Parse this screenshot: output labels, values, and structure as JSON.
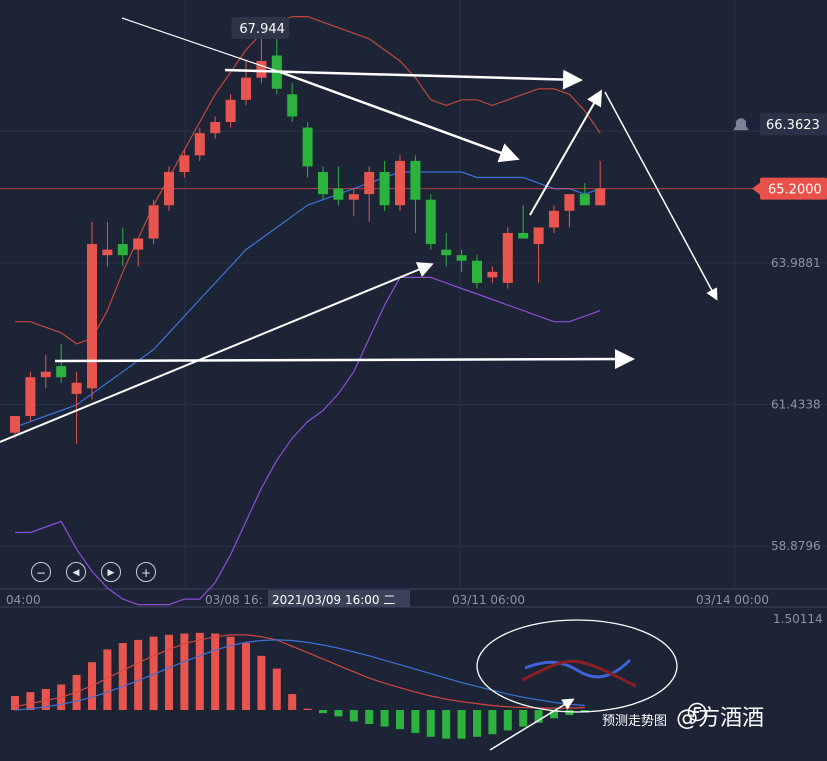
{
  "chart_data": {
    "type": "candlestick",
    "main": {
      "y_ticks": [
        "66.3623",
        "63.9881",
        "61.4338",
        "58.8796"
      ],
      "y_tick_values": [
        66.3623,
        63.9881,
        61.4338,
        58.8796
      ],
      "top_tick_partial": "",
      "ylim": [
        58.0,
        68.6
      ],
      "last_price_label": "65.2000",
      "last_price": 65.2,
      "high_label": "67.944",
      "x_labels": [
        "04:00",
        "03/08 16:",
        "03/11 06:00",
        "03/14 00:00"
      ],
      "crosshair_time": "2021/03/09 16:00 二",
      "candles": [
        [
          60.8,
          61.1,
          60.7,
          61.1
        ],
        [
          61.1,
          61.9,
          61.0,
          61.8
        ],
        [
          61.8,
          62.2,
          61.6,
          61.9
        ],
        [
          62.0,
          62.4,
          61.7,
          61.8
        ],
        [
          61.5,
          61.9,
          60.6,
          61.7
        ],
        [
          61.6,
          64.6,
          61.4,
          64.2
        ],
        [
          64.0,
          64.6,
          63.8,
          64.1
        ],
        [
          64.2,
          64.5,
          63.8,
          64.0
        ],
        [
          64.1,
          64.3,
          63.8,
          64.3
        ],
        [
          64.3,
          65.0,
          64.2,
          64.9
        ],
        [
          64.9,
          65.6,
          64.8,
          65.5
        ],
        [
          65.5,
          65.9,
          65.4,
          65.8
        ],
        [
          65.8,
          66.3,
          65.7,
          66.2
        ],
        [
          66.2,
          66.5,
          66.1,
          66.4
        ],
        [
          66.4,
          66.9,
          66.3,
          66.8
        ],
        [
          66.8,
          67.5,
          66.7,
          67.2
        ],
        [
          67.2,
          67.9,
          67.1,
          67.5
        ],
        [
          67.6,
          67.9,
          66.9,
          67.0
        ],
        [
          66.9,
          67.1,
          66.4,
          66.5
        ],
        [
          66.3,
          66.4,
          65.4,
          65.6
        ],
        [
          65.5,
          65.6,
          65.0,
          65.1
        ],
        [
          65.2,
          65.6,
          64.9,
          65.0
        ],
        [
          65.0,
          65.2,
          64.7,
          65.1
        ],
        [
          65.1,
          65.6,
          64.6,
          65.5
        ],
        [
          65.5,
          65.7,
          64.8,
          64.9
        ],
        [
          64.9,
          65.8,
          64.8,
          65.7
        ],
        [
          65.7,
          65.8,
          64.4,
          65.0
        ],
        [
          65.0,
          65.1,
          64.1,
          64.2
        ],
        [
          64.1,
          64.4,
          63.8,
          64.0
        ],
        [
          64.0,
          64.1,
          63.7,
          63.9
        ],
        [
          63.9,
          64.0,
          63.4,
          63.5
        ],
        [
          63.6,
          63.8,
          63.5,
          63.7
        ],
        [
          63.5,
          64.5,
          63.4,
          64.4
        ],
        [
          64.4,
          64.9,
          64.3,
          64.3
        ],
        [
          64.2,
          64.5,
          63.5,
          64.5
        ],
        [
          64.5,
          64.9,
          64.4,
          64.8
        ],
        [
          64.8,
          65.1,
          64.5,
          65.1
        ],
        [
          65.1,
          65.3,
          64.9,
          64.9
        ],
        [
          64.9,
          65.7,
          64.9,
          65.2
        ]
      ],
      "upper_band": [
        62.8,
        62.8,
        62.7,
        62.6,
        62.4,
        62.5,
        63.0,
        63.7,
        64.3,
        64.9,
        65.4,
        65.9,
        66.4,
        66.9,
        67.3,
        67.7,
        68.0,
        68.2,
        68.3,
        68.3,
        68.2,
        68.1,
        68.0,
        67.9,
        67.7,
        67.5,
        67.2,
        66.8,
        66.7,
        66.8,
        66.8,
        66.7,
        66.8,
        66.9,
        67.0,
        67.0,
        66.9,
        66.6,
        66.2
      ],
      "mid_band": [
        60.9,
        61.0,
        61.1,
        61.2,
        61.3,
        61.5,
        61.7,
        61.9,
        62.1,
        62.3,
        62.6,
        62.9,
        63.2,
        63.5,
        63.8,
        64.1,
        64.3,
        64.5,
        64.7,
        64.9,
        65.0,
        65.1,
        65.2,
        65.3,
        65.4,
        65.5,
        65.5,
        65.5,
        65.5,
        65.5,
        65.4,
        65.4,
        65.4,
        65.4,
        65.3,
        65.2,
        65.2,
        65.1,
        65.2
      ],
      "lower_band": [
        59.0,
        59.0,
        59.1,
        59.2,
        58.7,
        58.3,
        58.0,
        57.8,
        57.7,
        57.7,
        57.7,
        57.8,
        57.8,
        58.1,
        58.6,
        59.2,
        59.8,
        60.3,
        60.7,
        61.0,
        61.2,
        61.5,
        61.9,
        62.5,
        63.1,
        63.6,
        63.6,
        63.6,
        63.5,
        63.4,
        63.3,
        63.2,
        63.1,
        63.0,
        62.9,
        62.8,
        62.8,
        62.9,
        63.0
      ]
    },
    "sub": {
      "y_ticks": [
        "1.50114"
      ],
      "histogram": [
        0.22,
        0.28,
        0.33,
        0.4,
        0.55,
        0.75,
        0.95,
        1.05,
        1.1,
        1.15,
        1.18,
        1.2,
        1.21,
        1.2,
        1.15,
        1.05,
        0.85,
        0.65,
        0.25,
        0.02,
        -0.05,
        -0.1,
        -0.18,
        -0.22,
        -0.26,
        -0.3,
        -0.36,
        -0.42,
        -0.45,
        -0.45,
        -0.42,
        -0.38,
        -0.32,
        -0.26,
        -0.2,
        -0.13,
        -0.08,
        -0.04
      ],
      "line_fast": [
        0.05,
        0.1,
        0.15,
        0.2,
        0.28,
        0.38,
        0.5,
        0.62,
        0.74,
        0.85,
        0.95,
        1.04,
        1.1,
        1.15,
        1.18,
        1.18,
        1.15,
        1.1,
        1.0,
        0.9,
        0.8,
        0.7,
        0.6,
        0.5,
        0.42,
        0.35,
        0.28,
        0.22,
        0.17,
        0.13,
        0.1,
        0.07,
        0.05,
        0.04,
        0.03,
        0.03,
        0.03,
        0.04
      ],
      "line_slow": [
        0.0,
        0.02,
        0.05,
        0.09,
        0.14,
        0.2,
        0.28,
        0.37,
        0.46,
        0.56,
        0.66,
        0.76,
        0.85,
        0.94,
        1.01,
        1.06,
        1.09,
        1.1,
        1.09,
        1.06,
        1.02,
        0.97,
        0.91,
        0.85,
        0.78,
        0.71,
        0.64,
        0.57,
        0.5,
        0.43,
        0.37,
        0.31,
        0.25,
        0.2,
        0.16,
        0.12,
        0.09,
        0.07
      ],
      "ylim": [
        -0.8,
        1.6
      ]
    }
  },
  "annotation": {
    "caption": "预测走势图",
    "watermark": "@方酒酒",
    "watermark_logo": "toutiao-logo"
  },
  "controls": [
    {
      "name": "zoom-out-button",
      "glyph": "−"
    },
    {
      "name": "scroll-start-button",
      "glyph": "◀"
    },
    {
      "name": "scroll-end-button",
      "glyph": "▶"
    },
    {
      "name": "zoom-in-button",
      "glyph": "+"
    }
  ],
  "colors": {
    "bg": "#1d2436",
    "up": "#e8554e",
    "down": "#2bb33e",
    "upper_band": "#c2483b",
    "mid_band": "#3e72d8",
    "lower_band": "#8a4fd8",
    "price_badge": "#e85048",
    "grid": "#2a3247"
  }
}
